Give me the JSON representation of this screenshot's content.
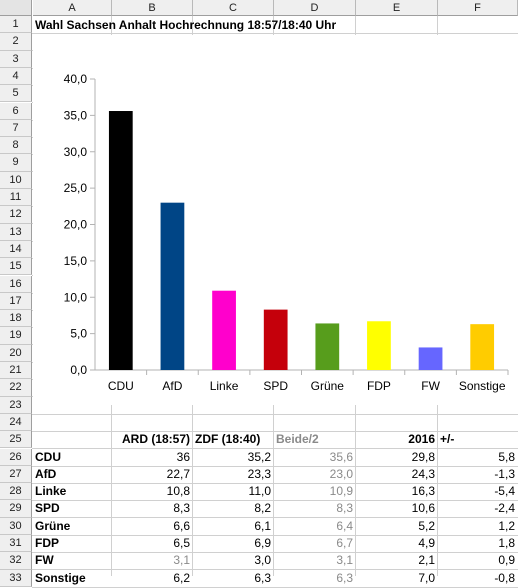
{
  "sheet": {
    "columns": [
      "A",
      "B",
      "C",
      "D",
      "E",
      "F"
    ],
    "rows": [
      "1",
      "2",
      "3",
      "4",
      "5",
      "6",
      "7",
      "8",
      "9",
      "10",
      "11",
      "12",
      "13",
      "14",
      "15",
      "16",
      "17",
      "18",
      "19",
      "20",
      "21",
      "22",
      "23",
      "24",
      "25",
      "26",
      "27",
      "28",
      "29",
      "30",
      "31",
      "32",
      "33"
    ],
    "title": "Wahl Sachsen Anhalt Hochrechnung 18:57/18:40 Uhr"
  },
  "table": {
    "headers": {
      "ard": "ARD (18:57)",
      "zdf": "ZDF (18:40)",
      "beide": "Beide/2",
      "y2016": "2016",
      "diff": "+/-"
    },
    "rows": [
      {
        "party": "CDU",
        "ard": "36",
        "zdf": "35,2",
        "beide": "35,6",
        "y2016": "29,8",
        "diff": "5,8"
      },
      {
        "party": "AfD",
        "ard": "22,7",
        "zdf": "23,3",
        "beide": "23,0",
        "y2016": "24,3",
        "diff": "-1,3"
      },
      {
        "party": "Linke",
        "ard": "10,8",
        "zdf": "11,0",
        "beide": "10,9",
        "y2016": "16,3",
        "diff": "-5,4"
      },
      {
        "party": "SPD",
        "ard": "8,3",
        "zdf": "8,2",
        "beide": "8,3",
        "y2016": "10,6",
        "diff": "-2,4"
      },
      {
        "party": "Grüne",
        "ard": "6,6",
        "zdf": "6,1",
        "beide": "6,4",
        "y2016": "5,2",
        "diff": "1,2"
      },
      {
        "party": "FDP",
        "ard": "6,5",
        "zdf": "6,9",
        "beide": "6,7",
        "y2016": "4,9",
        "diff": "1,8"
      },
      {
        "party": "FW",
        "ard": "3,1",
        "zdf": "3,0",
        "beide": "3,1",
        "y2016": "2,1",
        "diff": "0,9"
      },
      {
        "party": "Sonstige",
        "ard": "6,2",
        "zdf": "6,3",
        "beide": "6,3",
        "y2016": "7,0",
        "diff": "-0,8"
      }
    ]
  },
  "chart_data": {
    "type": "bar",
    "categories": [
      "CDU",
      "AfD",
      "Linke",
      "SPD",
      "Grüne",
      "FDP",
      "FW",
      "Sonstige"
    ],
    "values": [
      35.6,
      23.0,
      10.9,
      8.3,
      6.4,
      6.7,
      3.1,
      6.3
    ],
    "colors": [
      "#000000",
      "#004586",
      "#ff00cc",
      "#c5000b",
      "#579d1c",
      "#ffff00",
      "#6666ff",
      "#ffcc00"
    ],
    "ylim": [
      0,
      40
    ],
    "yticks": [
      "0,0",
      "5,0",
      "10,0",
      "15,0",
      "20,0",
      "25,0",
      "30,0",
      "35,0",
      "40,0"
    ],
    "grid": false,
    "legend": "none"
  }
}
